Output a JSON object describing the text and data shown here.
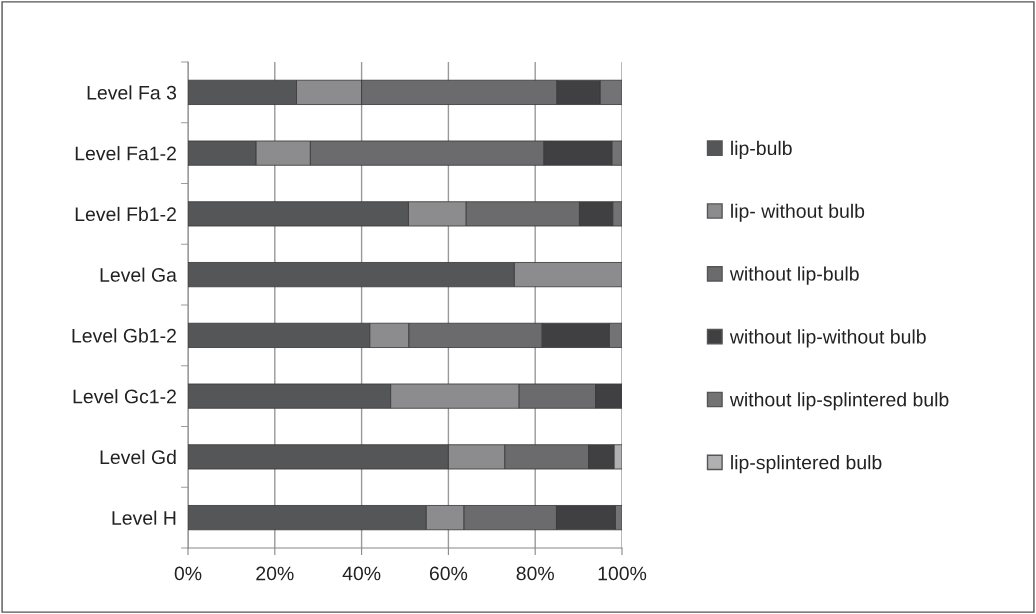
{
  "chart_data": {
    "type": "bar",
    "orientation": "horizontal",
    "stacked": true,
    "categories": [
      "Level Fa 3",
      "Level Fa1-2",
      "Level Fb1-2",
      "Level Ga",
      "Level Gb1-2",
      "Level Gc1-2",
      "Level Gd",
      "Level H"
    ],
    "series": [
      {
        "name": "lip-bulb",
        "color": "#555658",
        "values": [
          25,
          15.7,
          50.8,
          75.2,
          41.9,
          46.7,
          60,
          54.9
        ]
      },
      {
        "name": "lip- without bulb",
        "color": "#8c8c8e",
        "values": [
          15,
          12.5,
          13.3,
          24.8,
          9,
          29.6,
          13,
          8.7
        ]
      },
      {
        "name": "without lip-bulb",
        "color": "#6b6b6d",
        "values": [
          45,
          53.8,
          26.1,
          0,
          30.7,
          17.6,
          19.3,
          21.3
        ]
      },
      {
        "name": "without lip-without bulb",
        "color": "#404042",
        "values": [
          10,
          15.7,
          7.7,
          0,
          15.5,
          6.1,
          5.9,
          13.6
        ]
      },
      {
        "name": "without lip-splintered bulb",
        "color": "#737375",
        "values": [
          5,
          2.3,
          2.1,
          0,
          2.9,
          0,
          0,
          1.5
        ]
      },
      {
        "name": "lip-splintered bulb",
        "color": "#b0b0b2",
        "values": [
          0,
          0,
          0,
          0,
          0,
          0,
          1.8,
          0
        ]
      }
    ],
    "xlim": [
      0,
      100
    ],
    "xticks": [
      {
        "value": 0,
        "label": "0%"
      },
      {
        "value": 20,
        "label": "20%"
      },
      {
        "value": 40,
        "label": "40%"
      },
      {
        "value": 60,
        "label": "60%"
      },
      {
        "value": 80,
        "label": "80%"
      },
      {
        "value": 100,
        "label": "100%"
      }
    ],
    "grid": "x",
    "legend": "right"
  }
}
